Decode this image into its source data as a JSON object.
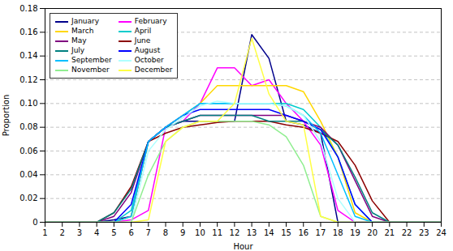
{
  "chart_data": {
    "type": "line",
    "xlabel": "Hour",
    "ylabel": "Proportion",
    "x": [
      1,
      2,
      3,
      4,
      5,
      6,
      7,
      8,
      9,
      10,
      11,
      12,
      13,
      14,
      15,
      16,
      17,
      18,
      19,
      20,
      21,
      22,
      23,
      24
    ],
    "series": [
      {
        "name": "January",
        "color": "#00008B",
        "values": [
          0,
          0,
          0,
          0,
          0.002,
          0.005,
          0.068,
          0.08,
          0.085,
          0.085,
          0.085,
          0.085,
          0.158,
          0.138,
          0.085,
          0.082,
          0.075,
          0,
          0,
          0,
          0,
          0,
          0,
          0
        ]
      },
      {
        "name": "February",
        "color": "#FF00FF",
        "values": [
          0,
          0,
          0,
          0,
          0,
          0.002,
          0.01,
          0.08,
          0.085,
          0.1,
          0.13,
          0.13,
          0.115,
          0.12,
          0.1,
          0.085,
          0.065,
          0.01,
          0,
          0,
          0,
          0,
          0,
          0
        ]
      },
      {
        "name": "March",
        "color": "#FFD700",
        "values": [
          0,
          0,
          0,
          0,
          0,
          0.005,
          0.068,
          0.08,
          0.09,
          0.1,
          0.115,
          0.115,
          0.115,
          0.115,
          0.115,
          0.11,
          0.085,
          0.055,
          0.008,
          0,
          0,
          0,
          0,
          0
        ]
      },
      {
        "name": "April",
        "color": "#00CCCC",
        "values": [
          0,
          0,
          0,
          0,
          0,
          0.01,
          0.068,
          0.08,
          0.09,
          0.1,
          0.1,
          0.1,
          0.1,
          0.1,
          0.1,
          0.095,
          0.08,
          0.055,
          0.015,
          0,
          0,
          0,
          0,
          0
        ]
      },
      {
        "name": "May",
        "color": "#800080",
        "values": [
          0,
          0,
          0,
          0,
          0.005,
          0.025,
          0.068,
          0.08,
          0.085,
          0.09,
          0.09,
          0.09,
          0.09,
          0.09,
          0.09,
          0.085,
          0.08,
          0.065,
          0.035,
          0.005,
          0,
          0,
          0,
          0
        ]
      },
      {
        "name": "June",
        "color": "#8B0000",
        "values": [
          0,
          0,
          0,
          0,
          0.008,
          0.03,
          0.068,
          0.075,
          0.08,
          0.082,
          0.084,
          0.085,
          0.085,
          0.085,
          0.082,
          0.08,
          0.075,
          0.068,
          0.048,
          0.018,
          0,
          0,
          0,
          0
        ]
      },
      {
        "name": "July",
        "color": "#008080",
        "values": [
          0,
          0,
          0,
          0,
          0.008,
          0.028,
          0.068,
          0.08,
          0.085,
          0.09,
          0.09,
          0.09,
          0.09,
          0.085,
          0.085,
          0.085,
          0.078,
          0.065,
          0.038,
          0.008,
          0,
          0,
          0,
          0
        ]
      },
      {
        "name": "August",
        "color": "#0000FF",
        "values": [
          0,
          0,
          0,
          0,
          0,
          0.015,
          0.068,
          0.08,
          0.09,
          0.095,
          0.095,
          0.095,
          0.095,
          0.095,
          0.09,
          0.085,
          0.078,
          0.055,
          0.015,
          0,
          0,
          0,
          0,
          0
        ]
      },
      {
        "name": "September",
        "color": "#00BFFF",
        "values": [
          0,
          0,
          0,
          0,
          0,
          0.005,
          0.068,
          0.08,
          0.09,
          0.1,
          0.1,
          0.1,
          0.1,
          0.1,
          0.098,
          0.09,
          0.075,
          0.04,
          0.005,
          0,
          0,
          0,
          0,
          0
        ]
      },
      {
        "name": "October",
        "color": "#AFFFFF",
        "values": [
          0,
          0,
          0,
          0,
          0,
          0,
          0.06,
          0.078,
          0.088,
          0.098,
          0.102,
          0.1,
          0.1,
          0.1,
          0.098,
          0.09,
          0.068,
          0.02,
          0,
          0,
          0,
          0,
          0,
          0
        ]
      },
      {
        "name": "November",
        "color": "#90EE90",
        "values": [
          0,
          0,
          0,
          0,
          0,
          0,
          0.04,
          0.068,
          0.08,
          0.085,
          0.085,
          0.085,
          0.085,
          0.082,
          0.072,
          0.048,
          0.005,
          0,
          0,
          0,
          0,
          0,
          0,
          0
        ]
      },
      {
        "name": "December",
        "color": "#FFFF44",
        "values": [
          0,
          0,
          0,
          0,
          0,
          0,
          0.002,
          0.068,
          0.08,
          0.085,
          0.085,
          0.1,
          0.155,
          0.108,
          0.085,
          0.082,
          0.005,
          0,
          0,
          0,
          0,
          0,
          0,
          0
        ]
      }
    ],
    "xlim": [
      1,
      24
    ],
    "ylim": [
      0,
      0.18
    ],
    "xticks": [
      1,
      2,
      3,
      4,
      5,
      6,
      7,
      8,
      9,
      10,
      11,
      12,
      13,
      14,
      15,
      16,
      17,
      18,
      19,
      20,
      21,
      22,
      23,
      24
    ],
    "yticks": [
      0,
      0.02,
      0.04,
      0.06,
      0.08,
      {
        "value": 0.1,
        "label": "0.10"
      },
      0.12,
      0.14,
      0.16,
      0.18
    ],
    "grid": true,
    "legend": "upper left"
  }
}
